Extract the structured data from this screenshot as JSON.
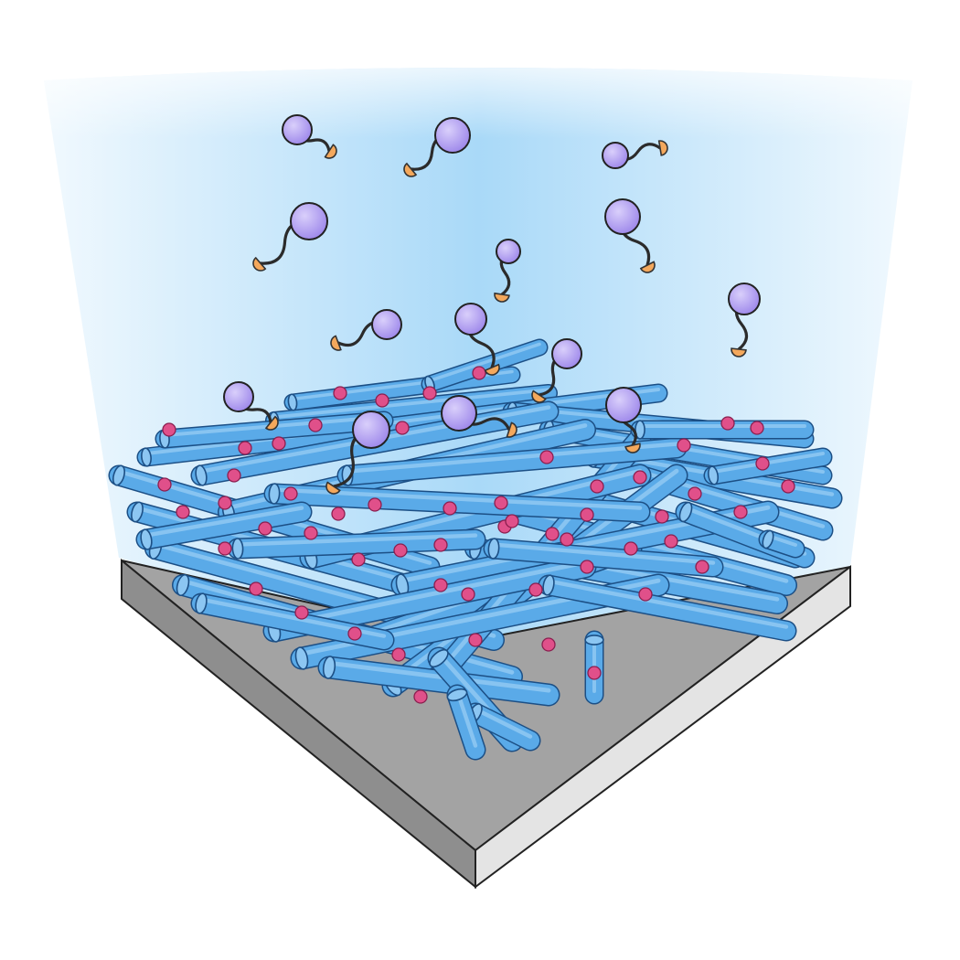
{
  "colors": {
    "background": "#ffffff",
    "solution_top": "#9fd3f7",
    "solution_edge": "#eaf6fd",
    "substrate_top": "#9e9e9e",
    "substrate_front": "#d8d8d8",
    "substrate_side": "#ebebeb",
    "fiber_fill": "#5aaae8",
    "fiber_end": "#8cc6f2",
    "fiber_outline": "#1c4f85",
    "binding_site": "#e0508a",
    "molecule_head": "#b7a6f0",
    "molecule_tail": "#f4a85c",
    "linker": "#2b2b2b",
    "outline": "#111111"
  },
  "icons": {
    "free_molecule": "sphere-with-tethered-ligand-icon",
    "bound_molecule": "captured-sphere-icon",
    "fiber": "cylindrical-fiber-icon",
    "binding_site": "pink-dot-icon"
  },
  "counts": {
    "free_molecules": 11,
    "captured_molecules": 5
  }
}
